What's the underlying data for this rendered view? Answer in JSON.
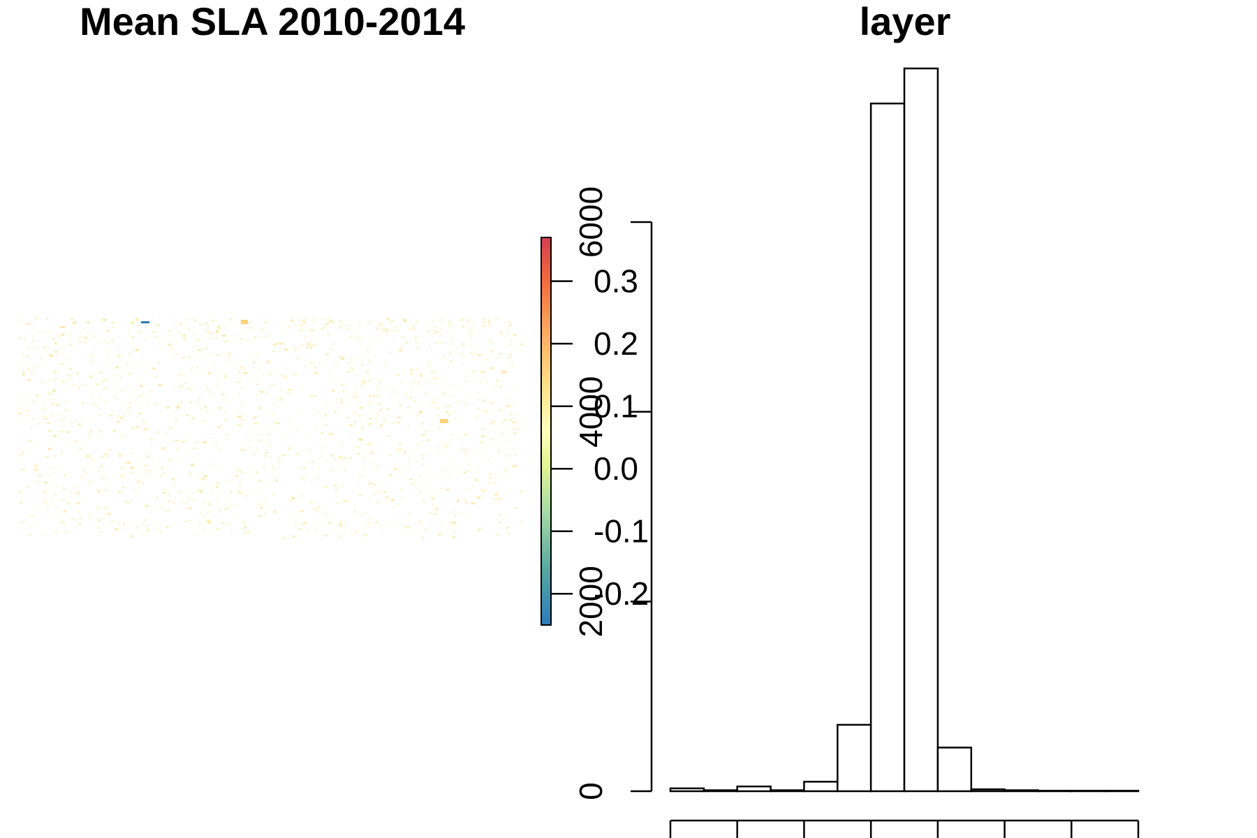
{
  "chart_data": [
    {
      "type": "heatmap",
      "title": "Mean SLA 2010-2014",
      "colorbar": {
        "ticks": [
          "0.3",
          "0.2",
          "0.1",
          "0.0",
          "-0.1",
          "-0.2"
        ],
        "tick_values": [
          0.3,
          0.2,
          0.1,
          0.0,
          -0.1,
          -0.2
        ],
        "range": [
          -0.25,
          0.37
        ],
        "palette": [
          "#2c7bb6",
          "#5fa8a2",
          "#abdda4",
          "#e6f598",
          "#ffffbf",
          "#fee08b",
          "#fdae61",
          "#f46d43",
          "#d53e4f"
        ]
      }
    },
    {
      "type": "bar",
      "title": "layer",
      "yticks": [
        "0",
        "2000",
        "4000",
        "6000"
      ],
      "ytick_values": [
        0,
        2000,
        4000,
        6000
      ],
      "ylim": [
        0,
        7600
      ],
      "bins": 14,
      "values": [
        30,
        10,
        50,
        10,
        100,
        700,
        7250,
        7620,
        460,
        20,
        10,
        5,
        5,
        5
      ]
    }
  ]
}
